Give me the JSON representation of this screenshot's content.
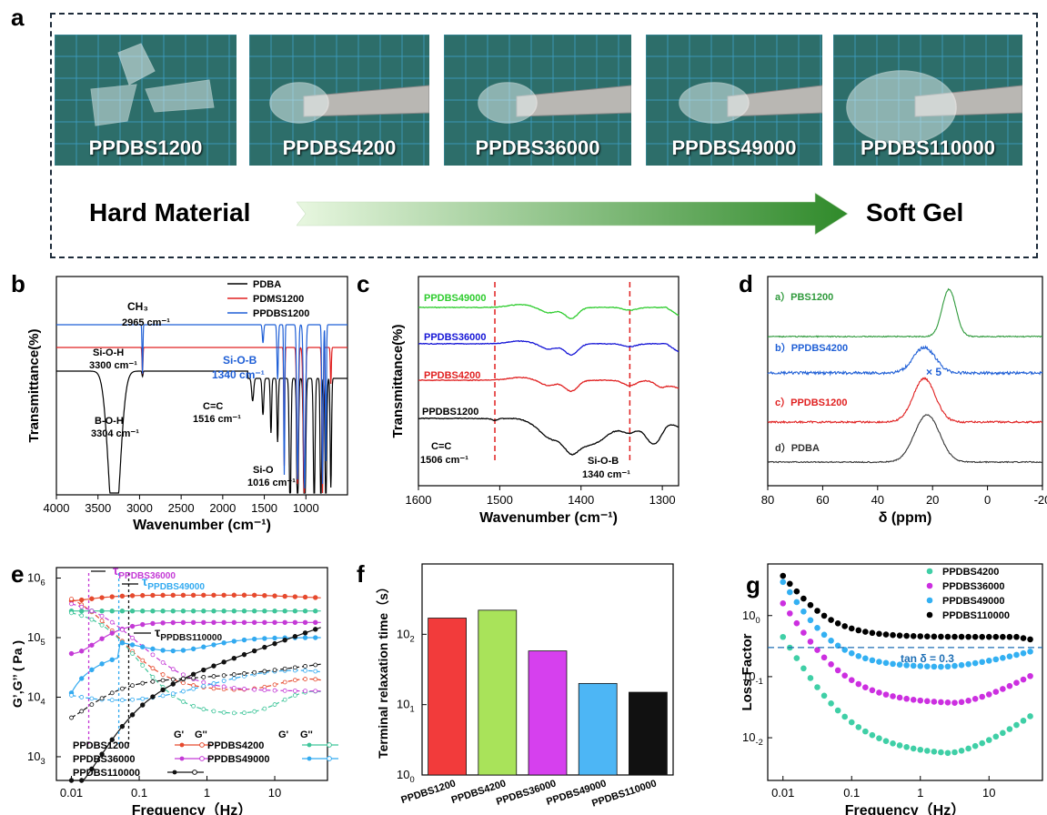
{
  "panel_letters": [
    "a",
    "b",
    "c",
    "d",
    "e",
    "f",
    "g"
  ],
  "panel_a": {
    "photos": [
      {
        "label": "PPDBS1200"
      },
      {
        "label": "PPDBS4200"
      },
      {
        "label": "PPDBS36000"
      },
      {
        "label": "PPDBS49000"
      },
      {
        "label": "PPDBS110000"
      }
    ],
    "left_label": "Hard Material",
    "right_label": "Soft Gel",
    "colors": {
      "mat": "#2d6e6a",
      "grid": "#3e9ec2",
      "arrow_start": "#e8f7e0",
      "arrow_end": "#2f8a2a"
    }
  },
  "chart_data": [
    {
      "id": "b",
      "type": "line",
      "xlabel": "Wavenumber (cm⁻¹)",
      "ylabel": "Transmittance(%)",
      "xlim": [
        4000,
        500
      ],
      "x_ticks": [
        4000,
        3500,
        3000,
        2500,
        2000,
        1500,
        1000
      ],
      "series": [
        {
          "name": "PDBA",
          "color": "#000000"
        },
        {
          "name": "PDMS1200",
          "color": "#e02020"
        },
        {
          "name": "PPDBS1200",
          "color": "#1f5fd6"
        }
      ],
      "annotations": [
        {
          "text": "CH₃",
          "sub": "2965 cm⁻¹"
        },
        {
          "text": "Si-O-H",
          "sub": "3300 cm⁻¹"
        },
        {
          "text": "Si-O-B",
          "sub": "1340 cm⁻¹"
        },
        {
          "text": "C=C",
          "sub": "1516 cm⁻¹"
        },
        {
          "text": "B-O-H",
          "sub": "3304 cm⁻¹"
        },
        {
          "text": "Si-O",
          "sub": "1016 cm⁻¹"
        }
      ]
    },
    {
      "id": "c",
      "type": "line",
      "xlabel": "Wavenumber (cm⁻¹)",
      "ylabel": "Transmittance(%)",
      "xlim": [
        1600,
        1280
      ],
      "x_ticks": [
        1600,
        1500,
        1400,
        1300
      ],
      "series": [
        {
          "name": "PPDBS49000",
          "color": "#2ecc2e"
        },
        {
          "name": "PPDBS36000",
          "color": "#1515d6"
        },
        {
          "name": "PPDBS4200",
          "color": "#e02020"
        },
        {
          "name": "PPDBS1200",
          "color": "#000000"
        }
      ],
      "annotations": [
        {
          "text": "C=C",
          "sub": "1506 cm⁻¹"
        },
        {
          "text": "Si-O-B",
          "sub": "1340 cm⁻¹"
        }
      ],
      "dashed_lines": [
        1506,
        1340
      ]
    },
    {
      "id": "d",
      "type": "line",
      "xlabel": "δ (ppm)",
      "xlim": [
        80,
        -20
      ],
      "x_ticks": [
        80,
        60,
        40,
        20,
        0,
        -20
      ],
      "series": [
        {
          "name": "a）PBS1200",
          "color": "#2f9a3c",
          "peak": 14
        },
        {
          "name": "b）PPDBS4200",
          "color": "#1f5fd6",
          "peak": 23
        },
        {
          "name": "c）PPDBS1200",
          "color": "#e02020",
          "peak": 23
        },
        {
          "name": "d）PDBA",
          "color": "#333333",
          "peak": 22
        }
      ],
      "annotations": [
        {
          "text": "× 5"
        }
      ]
    },
    {
      "id": "e",
      "type": "line",
      "xlabel": "Frequency（Hz）",
      "ylabel": "G’,G’’ ( Pa )",
      "x_log": true,
      "y_log": true,
      "xlim": [
        0.006,
        60
      ],
      "ylim": [
        400,
        1500000
      ],
      "x_ticks": [
        0.01,
        0.1,
        1,
        10
      ],
      "x_tick_labels": [
        "0.01",
        "0.1",
        "1",
        "10"
      ],
      "y_ticks": [
        1000,
        10000,
        100000,
        1000000
      ],
      "series": [
        {
          "name": "PPDBS1200",
          "color": "#e64a2e"
        },
        {
          "name": "PPDBS4200",
          "color": "#3fc59a"
        },
        {
          "name": "PPDBS36000",
          "color": "#c43ad6"
        },
        {
          "name": "PPDBS49000",
          "color": "#33aaf0"
        },
        {
          "name": "PPDBS110000",
          "color": "#111111"
        }
      ],
      "legend_headers": [
        "G'",
        "G''",
        "G'",
        "G''"
      ],
      "tau_labels": [
        {
          "text": "τ",
          "sub": "PPDBS36000",
          "color": "#c43ad6",
          "x": 0.018
        },
        {
          "text": "τ",
          "sub": "PPDBS49000",
          "color": "#33aaf0",
          "x": 0.05
        },
        {
          "text": "τ",
          "sub": "PPDBS110000",
          "color": "#111111",
          "x": 0.07
        }
      ]
    },
    {
      "id": "f",
      "type": "bar",
      "ylabel": "Terminal relaxation time（s）",
      "y_log": true,
      "ylim": [
        1,
        1000
      ],
      "y_ticks": [
        1,
        10,
        100
      ],
      "categories": [
        "PPDBS1200",
        "PPDBS4200",
        "PPDBS36000",
        "PPDBS49000",
        "PPDBS110000"
      ],
      "values": [
        170,
        220,
        58,
        20,
        15
      ],
      "colors": [
        "#f23b3b",
        "#a9e35a",
        "#d640ee",
        "#4db6f5",
        "#111111"
      ]
    },
    {
      "id": "g",
      "type": "scatter",
      "xlabel": "Frequency（Hz）",
      "ylabel": "Loss Factor",
      "x_log": true,
      "y_log": true,
      "xlim": [
        0.006,
        60
      ],
      "ylim": [
        0.002,
        7
      ],
      "x_ticks": [
        0.01,
        0.1,
        1,
        10
      ],
      "x_tick_labels": [
        "0.01",
        "0.1",
        "1",
        "10"
      ],
      "y_ticks": [
        0.01,
        0.1,
        1
      ],
      "series": [
        {
          "name": "PPDBS4200",
          "color": "#3fcfa6"
        },
        {
          "name": "PPDBS36000",
          "color": "#cc2fe0"
        },
        {
          "name": "PPDBS49000",
          "color": "#33b0f2"
        },
        {
          "name": "PPDBS110000",
          "color": "#000000"
        }
      ],
      "ref_line": {
        "y": 0.3,
        "label": "tan δ = 0.3",
        "color": "#1f6fb4"
      }
    }
  ]
}
